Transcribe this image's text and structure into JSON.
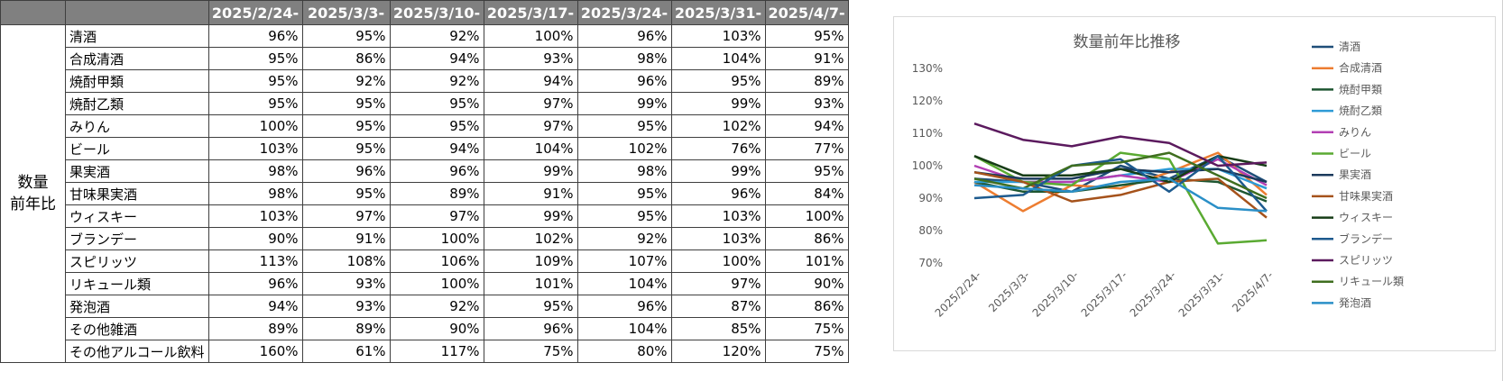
{
  "table": {
    "group_label": "数量\n前年比",
    "columns": [
      "2025/2/24-",
      "2025/3/3-",
      "2025/3/10-",
      "2025/3/17-",
      "2025/3/24-",
      "2025/3/31-",
      "2025/4/7-"
    ],
    "rows": [
      {
        "label": "清酒",
        "values": [
          "96%",
          "95%",
          "92%",
          "100%",
          "96%",
          "103%",
          "95%"
        ]
      },
      {
        "label": "合成清酒",
        "values": [
          "95%",
          "86%",
          "94%",
          "93%",
          "98%",
          "104%",
          "91%"
        ]
      },
      {
        "label": "焼酎甲類",
        "values": [
          "95%",
          "92%",
          "92%",
          "94%",
          "96%",
          "95%",
          "89%"
        ]
      },
      {
        "label": "焼酎乙類",
        "values": [
          "95%",
          "95%",
          "95%",
          "97%",
          "99%",
          "99%",
          "93%"
        ]
      },
      {
        "label": "みりん",
        "values": [
          "100%",
          "95%",
          "95%",
          "97%",
          "95%",
          "102%",
          "94%"
        ]
      },
      {
        "label": "ビール",
        "values": [
          "103%",
          "95%",
          "94%",
          "104%",
          "102%",
          "76%",
          "77%"
        ]
      },
      {
        "label": "果実酒",
        "values": [
          "98%",
          "96%",
          "96%",
          "99%",
          "98%",
          "99%",
          "95%"
        ]
      },
      {
        "label": "甘味果実酒",
        "values": [
          "98%",
          "95%",
          "89%",
          "91%",
          "95%",
          "96%",
          "84%"
        ]
      },
      {
        "label": "ウィスキー",
        "values": [
          "103%",
          "97%",
          "97%",
          "99%",
          "95%",
          "103%",
          "100%"
        ]
      },
      {
        "label": "ブランデー",
        "values": [
          "90%",
          "91%",
          "100%",
          "102%",
          "92%",
          "103%",
          "86%"
        ]
      },
      {
        "label": "スピリッツ",
        "values": [
          "113%",
          "108%",
          "106%",
          "109%",
          "107%",
          "100%",
          "101%"
        ]
      },
      {
        "label": "リキュール類",
        "values": [
          "96%",
          "93%",
          "100%",
          "101%",
          "104%",
          "97%",
          "90%"
        ]
      },
      {
        "label": "発泡酒",
        "values": [
          "94%",
          "93%",
          "92%",
          "95%",
          "96%",
          "87%",
          "86%"
        ]
      },
      {
        "label": "その他雑酒",
        "values": [
          "89%",
          "89%",
          "90%",
          "96%",
          "104%",
          "85%",
          "75%"
        ]
      },
      {
        "label": "その他アルコール飲料",
        "values": [
          "160%",
          "61%",
          "117%",
          "75%",
          "80%",
          "120%",
          "75%"
        ]
      }
    ]
  },
  "chart_data": {
    "type": "line",
    "title": "数量前年比推移",
    "categories": [
      "2025/2/24-",
      "2025/3/3-",
      "2025/3/10-",
      "2025/3/17-",
      "2025/3/24-",
      "2025/3/31-",
      "2025/4/7-"
    ],
    "y_ticks": [
      "70%",
      "80%",
      "90%",
      "100%",
      "110%",
      "120%",
      "130%"
    ],
    "ylim": [
      70,
      130
    ],
    "legend": "right",
    "grid": false,
    "series": [
      {
        "name": "清酒",
        "color": "#1f4e79",
        "values": [
          96,
          95,
          92,
          100,
          96,
          103,
          95
        ]
      },
      {
        "name": "合成清酒",
        "color": "#ed7d31",
        "values": [
          95,
          86,
          94,
          93,
          98,
          104,
          91
        ]
      },
      {
        "name": "焼酎甲類",
        "color": "#1e5631",
        "values": [
          95,
          92,
          92,
          94,
          96,
          95,
          89
        ]
      },
      {
        "name": "焼酎乙類",
        "color": "#2e9bd6",
        "values": [
          95,
          95,
          95,
          97,
          99,
          99,
          93
        ]
      },
      {
        "name": "みりん",
        "color": "#b23fb3",
        "values": [
          100,
          95,
          95,
          97,
          95,
          102,
          94
        ]
      },
      {
        "name": "ビール",
        "color": "#5aaa32",
        "values": [
          103,
          95,
          94,
          104,
          102,
          76,
          77
        ]
      },
      {
        "name": "果実酒",
        "color": "#1b3a5c",
        "values": [
          98,
          96,
          96,
          99,
          98,
          99,
          95
        ]
      },
      {
        "name": "甘味果実酒",
        "color": "#a5521b",
        "values": [
          98,
          95,
          89,
          91,
          95,
          96,
          84
        ]
      },
      {
        "name": "ウィスキー",
        "color": "#173d17",
        "values": [
          103,
          97,
          97,
          99,
          95,
          103,
          100
        ]
      },
      {
        "name": "ブランデー",
        "color": "#1d5a8e",
        "values": [
          90,
          91,
          100,
          102,
          92,
          103,
          86
        ]
      },
      {
        "name": "スピリッツ",
        "color": "#5b1a5e",
        "values": [
          113,
          108,
          106,
          109,
          107,
          100,
          101
        ]
      },
      {
        "name": "リキュール類",
        "color": "#3f6e1f",
        "values": [
          96,
          93,
          100,
          101,
          104,
          97,
          90
        ]
      },
      {
        "name": "発泡酒",
        "color": "#2a8fc7",
        "values": [
          94,
          93,
          92,
          95,
          96,
          87,
          86
        ]
      }
    ]
  }
}
